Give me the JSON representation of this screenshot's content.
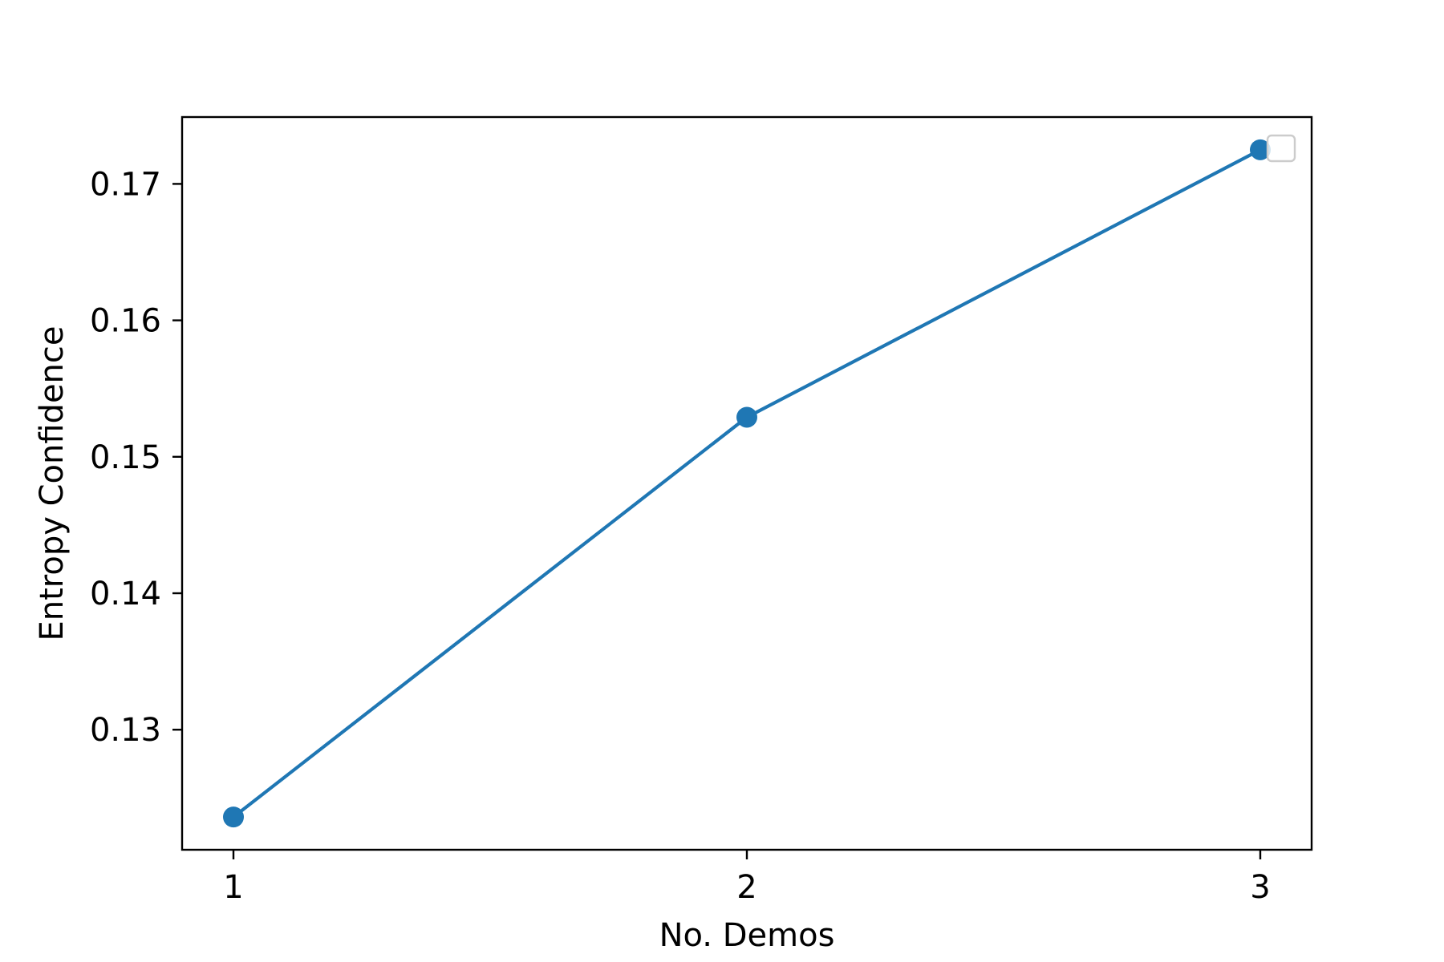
{
  "chart_data": {
    "type": "line",
    "title": "",
    "xlabel": "No. Demos",
    "ylabel": "Entropy Confidence",
    "x": [
      1,
      2,
      3
    ],
    "xticks": [
      1,
      2,
      3
    ],
    "xtick_labels": [
      "1",
      "2",
      "3"
    ],
    "xlim": [
      0.9,
      3.1
    ],
    "yticks": [
      0.13,
      0.14,
      0.15,
      0.16,
      0.17
    ],
    "ytick_labels": [
      "0.13",
      "0.14",
      "0.15",
      "0.16",
      "0.17"
    ],
    "ylim": [
      0.1212,
      0.1749
    ],
    "series": [
      {
        "values": [
          0.1236,
          0.1529,
          0.1725
        ],
        "color": "#1f77b4",
        "marker": "circle"
      }
    ],
    "grid": false,
    "legend": {
      "placement": "top-right",
      "entries": []
    }
  }
}
